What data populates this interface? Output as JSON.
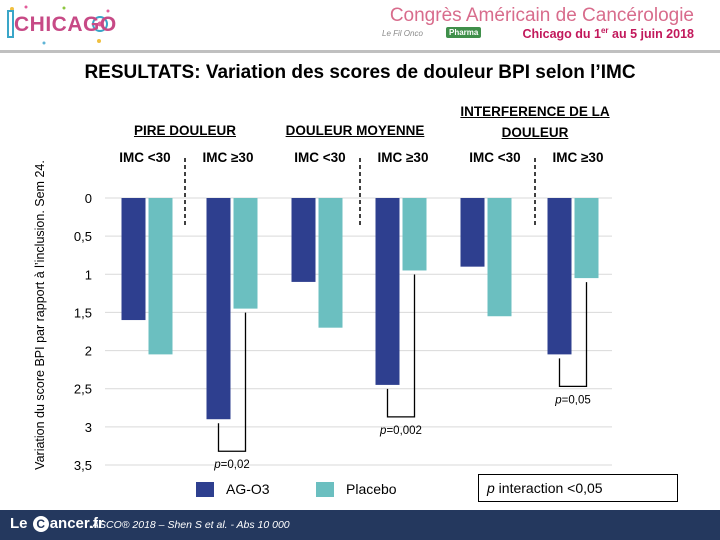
{
  "header": {
    "logo_text": "CHICAGO",
    "conference_title": "Congrès Américain de Cancérologie",
    "date_prefix": "Chicago du 1",
    "date_sup1": "er",
    "date_mid": " au 5 juin 2018",
    "sub_logo": "Le Fil Onco",
    "pharma_badge": "Pharma"
  },
  "title": "RESULTATS: Variation des scores de douleur BPI selon l’IMC",
  "groups": [
    {
      "label": "PIRE DOULEUR",
      "sub": [
        "IMC <30",
        "IMC ≥30"
      ]
    },
    {
      "label": "DOULEUR MOYENNE",
      "sub": [
        "IMC <30",
        "IMC ≥30"
      ]
    },
    {
      "label": "INTERFERENCE DE LA DOULEUR",
      "sub": [
        "IMC <30",
        "IMC ≥30"
      ]
    }
  ],
  "chart_data": {
    "type": "bar",
    "orientation": "downward",
    "ylabel": "Variation du score BPI par rapport à l’inclusion. Sem 24.",
    "ylim": [
      0,
      3.5
    ],
    "yticks": [
      "0",
      "0,5",
      "1",
      "1,5",
      "2",
      "2,5",
      "3",
      "3,5"
    ],
    "ytick_values": [
      0,
      0.5,
      1,
      1.5,
      2,
      2.5,
      3,
      3.5
    ],
    "grid": true,
    "categories": [
      "PIRE DOULEUR IMC <30",
      "PIRE DOULEUR IMC ≥30",
      "DOULEUR MOYENNE IMC <30",
      "DOULEUR MOYENNE IMC ≥30",
      "INTERFERENCE DE LA DOULEUR IMC <30",
      "INTERFERENCE DE LA DOULEUR IMC ≥30"
    ],
    "series": [
      {
        "name": "AG-O3",
        "color": "#2e3f8f",
        "values": [
          1.6,
          2.9,
          1.1,
          2.45,
          0.9,
          2.05
        ]
      },
      {
        "name": "Placebo",
        "color": "#6bbfc0",
        "values": [
          2.05,
          1.45,
          1.7,
          0.95,
          1.55,
          1.05
        ]
      }
    ],
    "annotations": [
      {
        "category_index": 1,
        "text": "p=0,02",
        "p": "p",
        "value": "=0,02"
      },
      {
        "category_index": 3,
        "text": "p=0,002",
        "p": "p",
        "value": "=0,002"
      },
      {
        "category_index": 5,
        "text": "p=0,05",
        "p": "p",
        "value": "=0,05"
      }
    ],
    "legend_position": "bottom"
  },
  "interaction": {
    "p": "p",
    "text": " interaction <0,05"
  },
  "footer": {
    "logo_pre": "Le ",
    "logo_c": "C",
    "logo_post": "ancer.fr",
    "reference_pre": "ASCO® 2018 – Shen S ",
    "reference_etal": "et al.",
    "reference_post": " - Abs 10 000"
  }
}
